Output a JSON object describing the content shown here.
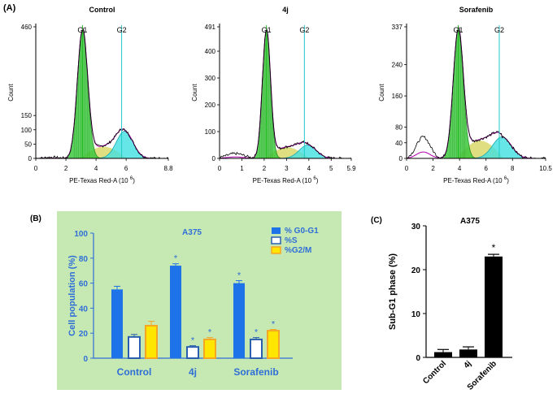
{
  "panel_labels": {
    "A": "(A)",
    "B": "(B)",
    "C": "(C)"
  },
  "histogram_common": {
    "ylabel": "Count",
    "xlabel": "PE-Texas Red-A",
    "xunit_base": "(10",
    "xunit_exp": "6",
    "xunit_close": ")",
    "g1_label": "G1",
    "g2_label": "G2"
  },
  "chart_data": [
    {
      "type": "histogram",
      "title": "Control",
      "xlim": [
        0,
        8.8
      ],
      "xticks": [
        "0",
        "2",
        "4",
        "6",
        "8.8"
      ],
      "xtick_values": [
        0,
        2,
        4,
        6,
        8.8
      ],
      "ylim": [
        0,
        460
      ],
      "yticks": [
        "0",
        "50",
        "100",
        "150",
        "460"
      ],
      "ytick_values": [
        0,
        50,
        100,
        150,
        460
      ],
      "g1_marker": 3.1,
      "g2_marker": 5.7,
      "g1_peak": {
        "center": 3.1,
        "sigma": 0.34,
        "height": 450
      },
      "s_phase": {
        "from": 3.4,
        "to": 5.5,
        "height": 40
      },
      "g2_peak": {
        "center": 5.9,
        "sigma": 0.55,
        "height": 95
      },
      "debris_level": 4
    },
    {
      "type": "histogram",
      "title": "4j",
      "xlim": [
        0,
        5.9
      ],
      "xticks": [
        "0",
        "1",
        "2",
        "3",
        "4",
        "5",
        "5.9"
      ],
      "xtick_values": [
        0,
        1,
        2,
        3,
        4,
        5,
        5.9
      ],
      "ylim": [
        0,
        491
      ],
      "yticks": [
        "0",
        "100",
        "200",
        "300",
        "400",
        "491"
      ],
      "ytick_values": [
        0,
        100,
        200,
        300,
        400,
        491
      ],
      "g1_marker": 2.1,
      "g2_marker": 3.8,
      "g1_peak": {
        "center": 2.1,
        "sigma": 0.18,
        "height": 480
      },
      "s_phase": {
        "from": 2.3,
        "to": 3.6,
        "height": 40
      },
      "g2_peak": {
        "center": 3.95,
        "sigma": 0.38,
        "height": 50
      },
      "debris_level": 18
    },
    {
      "type": "histogram",
      "title": "Sorafenib",
      "xlim": [
        0,
        10.5
      ],
      "xticks": [
        "0",
        "2",
        "4",
        "6",
        "8",
        "10.5"
      ],
      "xtick_values": [
        0,
        2,
        4,
        6,
        8,
        10.5
      ],
      "ylim": [
        0,
        337
      ],
      "yticks": [
        "0",
        "40",
        "80",
        "160",
        "240",
        "337"
      ],
      "ytick_values": [
        0,
        40,
        80,
        160,
        240,
        337
      ],
      "g1_marker": 3.9,
      "g2_marker": 7.0,
      "g1_peak": {
        "center": 3.9,
        "sigma": 0.38,
        "height": 330
      },
      "s_phase": {
        "from": 4.3,
        "to": 6.6,
        "height": 45
      },
      "g2_peak": {
        "center": 7.2,
        "sigma": 0.7,
        "height": 55
      },
      "debris_level": 55
    },
    {
      "type": "bar",
      "title": "A375",
      "ylabel": "Cell population (%)",
      "ylim": [
        0,
        100
      ],
      "yticks": [
        "0",
        "20",
        "40",
        "60",
        "80",
        "100"
      ],
      "ytick_values": [
        0,
        20,
        40,
        60,
        80,
        100
      ],
      "categories": [
        "Control",
        "4j",
        "Sorafenib"
      ],
      "series": [
        {
          "name": "% G0-G1",
          "values": [
            55,
            74,
            60
          ],
          "errors": [
            2.5,
            1.5,
            2
          ],
          "significant": [
            false,
            true,
            true
          ]
        },
        {
          "name": "%S",
          "values": [
            17,
            9,
            15
          ],
          "errors": [
            2,
            1,
            1.5
          ],
          "significant": [
            false,
            true,
            true
          ]
        },
        {
          "name": "%G2/M",
          "values": [
            26,
            15,
            22
          ],
          "errors": [
            3.5,
            1.5,
            1
          ],
          "significant": [
            false,
            true,
            true
          ]
        }
      ],
      "significance_mark": "*",
      "legend_position": "top-right"
    },
    {
      "type": "bar",
      "title": "A375",
      "ylabel": "Sub-G1 phase (%)",
      "ylim": [
        0,
        30
      ],
      "yticks": [
        "0",
        "10",
        "20",
        "30"
      ],
      "ytick_values": [
        0,
        10,
        20,
        30
      ],
      "categories": [
        "Control",
        "4j",
        "Sorafenib"
      ],
      "values": [
        1.2,
        1.8,
        23
      ],
      "errors": [
        0.6,
        0.6,
        0.5
      ],
      "significant": [
        false,
        false,
        true
      ],
      "significance_mark": "*"
    }
  ],
  "colors": {
    "g1_fill": "#3cc83c",
    "g1_line": "#2a8f2a",
    "s_fill": "#d9d96b",
    "g2_fill": "#40e0e0",
    "g2_line": "#1aa8b4",
    "fit_line": "#b000b0",
    "data_line": "#000000",
    "bar_blue": "#1e73e8",
    "bar_orange": "#f5a623",
    "bar_yellow": "#ffe600",
    "panel_b_bg": "#c6e9b4",
    "panel_b_text": "#2f6ed6",
    "sig_star": "#2f6ed6"
  }
}
